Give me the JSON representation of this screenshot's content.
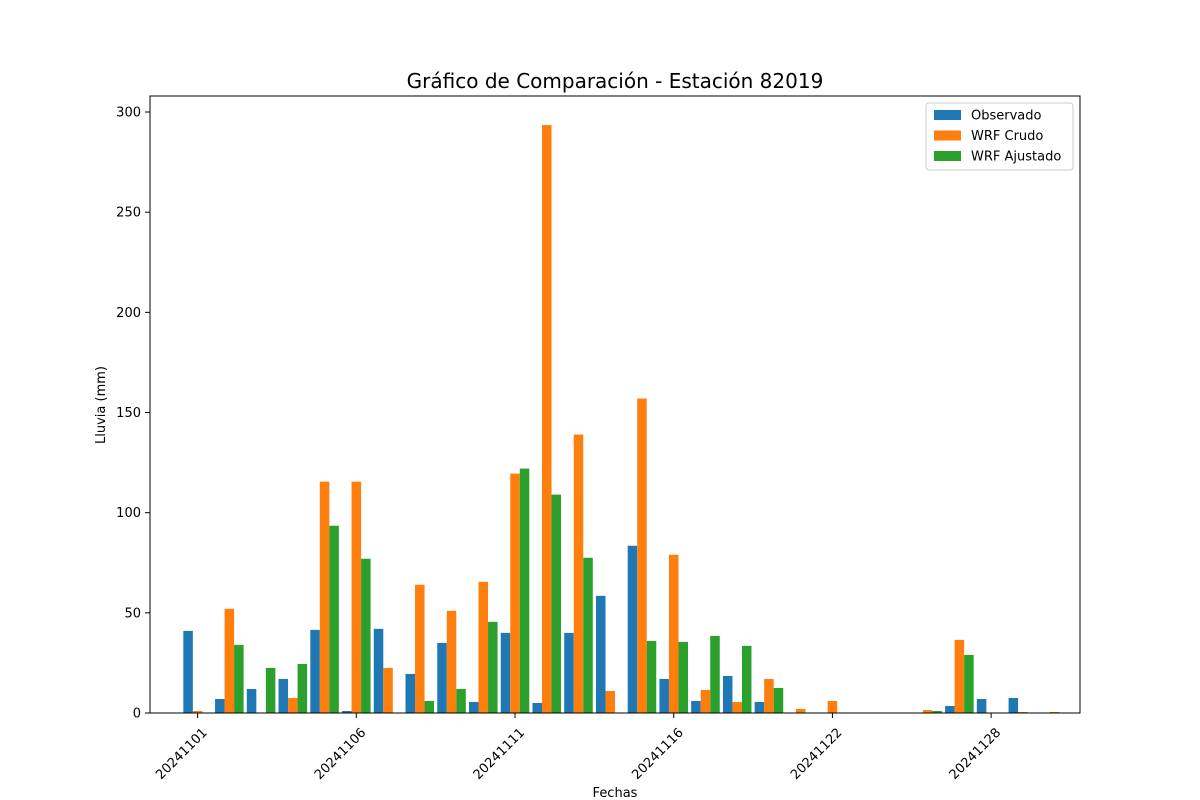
{
  "chart_data": {
    "type": "bar",
    "title": "Gráfico de Comparación - Estación 82019",
    "xlabel": "Fechas",
    "ylabel": "Lluvia (mm)",
    "ylim": [
      0,
      308
    ],
    "xlim": [
      -1.5,
      27.8
    ],
    "yticks": [
      0,
      50,
      100,
      150,
      200,
      250,
      300
    ],
    "xtick_labels": [
      {
        "x": 0,
        "label": "20241101"
      },
      {
        "x": 5,
        "label": "20241106"
      },
      {
        "x": 10,
        "label": "20241111"
      },
      {
        "x": 15,
        "label": "20241116"
      },
      {
        "x": 20,
        "label": "20241122"
      },
      {
        "x": 25,
        "label": "20241128"
      }
    ],
    "x": [
      0,
      1,
      2,
      3,
      4,
      5,
      6,
      7,
      8,
      9,
      10,
      11,
      12,
      13,
      14,
      15,
      16,
      17,
      18,
      19,
      20,
      21,
      22,
      23,
      24,
      25,
      26,
      27
    ],
    "bar_width": 0.3,
    "legend_position": "top-right",
    "grid": false,
    "series": [
      {
        "name": "Observado",
        "color": "#1f77b4",
        "values": [
          41,
          7,
          12,
          17,
          41.5,
          1,
          42,
          19.5,
          35,
          5.5,
          40,
          5,
          40,
          58.5,
          83.5,
          17,
          6,
          18.5,
          5.5,
          0,
          0,
          0,
          0,
          0,
          3.5,
          7,
          7.5,
          0
        ]
      },
      {
        "name": "WRF Crudo",
        "color": "#ff7f0e",
        "values": [
          1,
          52,
          0,
          7.5,
          115.5,
          115.5,
          22.5,
          64,
          51,
          65.5,
          119.5,
          293.5,
          139,
          11,
          157,
          79,
          11.5,
          5.5,
          17,
          2,
          6,
          0,
          0,
          1.5,
          36.5,
          0,
          0.5,
          0.5
        ]
      },
      {
        "name": "WRF Ajustado",
        "color": "#2ca02c",
        "values": [
          0,
          34,
          22.5,
          24.5,
          93.5,
          77,
          0,
          6,
          12,
          45.5,
          122,
          109,
          77.5,
          0,
          36,
          35.5,
          38.5,
          33.5,
          12.5,
          0,
          0,
          0,
          0,
          1,
          29,
          0,
          0,
          0
        ]
      }
    ]
  }
}
